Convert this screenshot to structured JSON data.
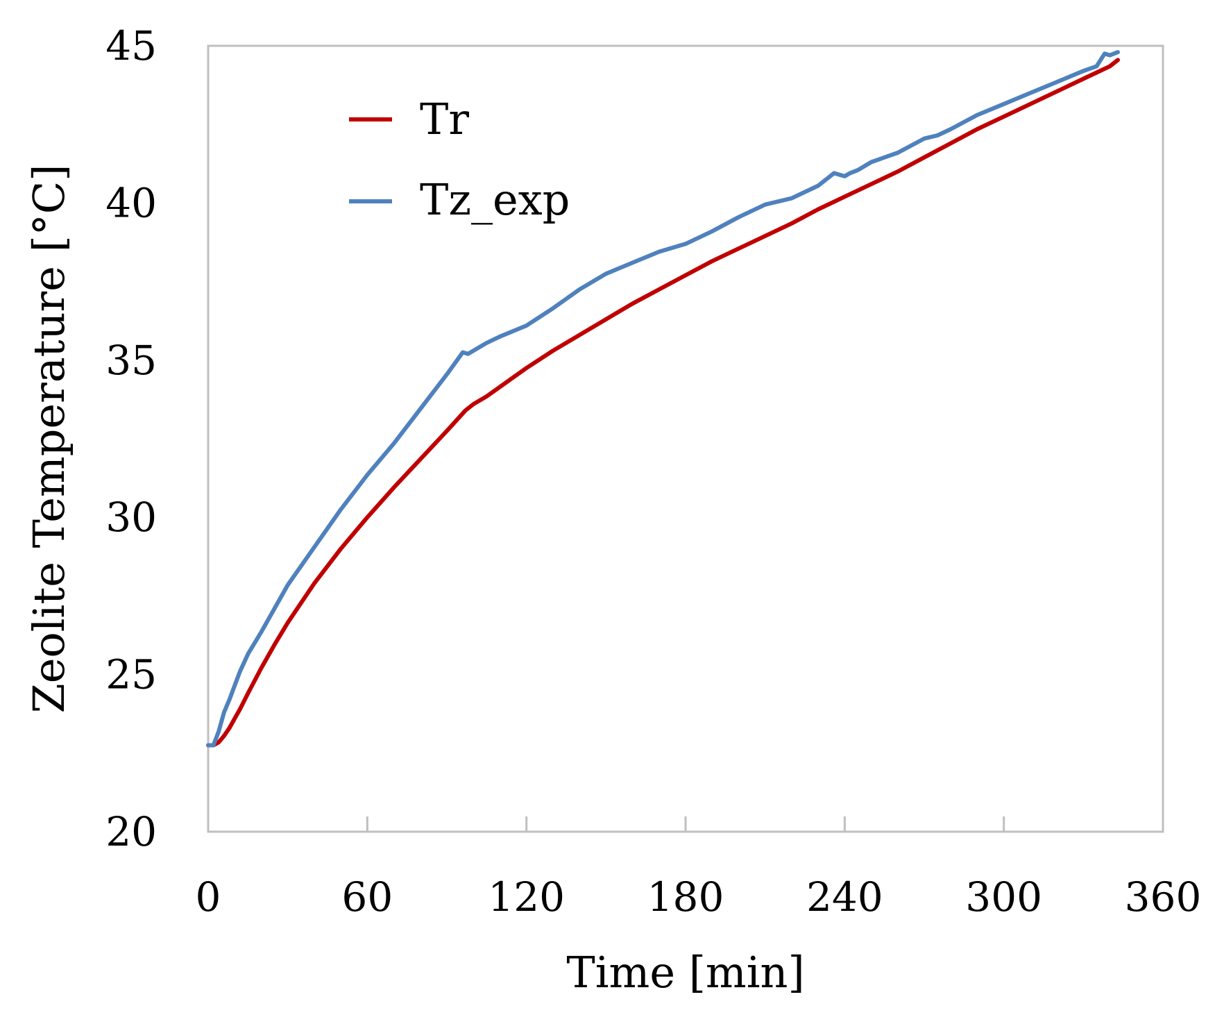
{
  "chart_data": {
    "type": "line",
    "title": "",
    "xlabel": "Time  [min]",
    "ylabel": "Zeolite Temperature  [°C]",
    "xlim": [
      0,
      360
    ],
    "ylim": [
      20,
      45
    ],
    "xticks": [
      0,
      60,
      120,
      180,
      240,
      300,
      360
    ],
    "yticks": [
      20,
      25,
      30,
      35,
      40,
      45
    ],
    "xtick_labels": [
      "0",
      "60",
      "120",
      "180",
      "240",
      "300",
      "360"
    ],
    "ytick_labels": [
      "20",
      "25",
      "30",
      "35",
      "40",
      "45"
    ],
    "grid": false,
    "legend_position": "top-left",
    "series": [
      {
        "name": "Tr",
        "color": "#c00000",
        "x": [
          0,
          2,
          4,
          6,
          8,
          10,
          12,
          15,
          20,
          25,
          30,
          40,
          50,
          60,
          70,
          80,
          90,
          97,
          100,
          105,
          110,
          120,
          130,
          140,
          150,
          160,
          170,
          180,
          190,
          200,
          210,
          220,
          230,
          240,
          250,
          260,
          270,
          280,
          290,
          300,
          310,
          320,
          330,
          335,
          340,
          343
        ],
        "y": [
          22.75,
          22.75,
          22.85,
          23.05,
          23.3,
          23.6,
          23.9,
          24.4,
          25.2,
          25.95,
          26.65,
          27.9,
          29.0,
          30.0,
          30.95,
          31.85,
          32.75,
          33.4,
          33.6,
          33.85,
          34.15,
          34.75,
          35.3,
          35.8,
          36.3,
          36.8,
          37.25,
          37.7,
          38.15,
          38.55,
          38.95,
          39.35,
          39.8,
          40.2,
          40.6,
          41.0,
          41.45,
          41.9,
          42.35,
          42.75,
          43.15,
          43.55,
          43.95,
          44.15,
          44.35,
          44.55
        ]
      },
      {
        "name": "Tz_exp",
        "color": "#4f81bd",
        "x": [
          0,
          2,
          4,
          6,
          8,
          10,
          12,
          15,
          20,
          25,
          30,
          40,
          50,
          60,
          70,
          80,
          90,
          96,
          98,
          100,
          105,
          110,
          120,
          130,
          140,
          150,
          160,
          170,
          180,
          190,
          200,
          210,
          220,
          230,
          236,
          240,
          242,
          245,
          250,
          255,
          260,
          270,
          275,
          280,
          290,
          300,
          310,
          320,
          330,
          335,
          338,
          340,
          343
        ],
        "y": [
          22.75,
          22.75,
          23.2,
          23.8,
          24.2,
          24.65,
          25.1,
          25.65,
          26.35,
          27.1,
          27.85,
          29.05,
          30.25,
          31.35,
          32.35,
          33.45,
          34.55,
          35.25,
          35.2,
          35.3,
          35.55,
          35.75,
          36.1,
          36.65,
          37.25,
          37.75,
          38.1,
          38.45,
          38.7,
          39.1,
          39.55,
          39.95,
          40.15,
          40.55,
          40.95,
          40.85,
          40.95,
          41.05,
          41.3,
          41.45,
          41.6,
          42.05,
          42.15,
          42.35,
          42.8,
          43.15,
          43.5,
          43.85,
          44.2,
          44.35,
          44.75,
          44.7,
          44.8
        ]
      }
    ]
  }
}
